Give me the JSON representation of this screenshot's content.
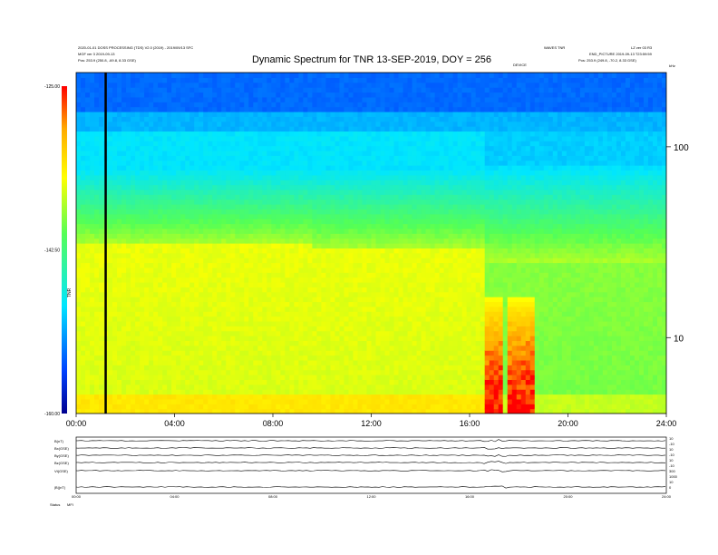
{
  "header": {
    "left_line1": "2020-01-01 DOSS PROCESSING (TDS) V2.0 (2019) - 2019/09/13 SFC",
    "left_line2": "MGF ver 3 2019-09-13",
    "left_line3": "Pos: 253.9 (250.8, -69.8, 8.33 GSE)",
    "right_line1": "WAVES TNR",
    "right_line2": "LZ ver 03 R3",
    "right_line3": "END_PICTURE 2019-09-13 T23:59:59",
    "right_line4": "Pos: 253.9 (249.8, -70.2, 8.33 GSE)",
    "mid_label": "DEVICE",
    "corner_label": "kHz"
  },
  "chart_data": {
    "type": "heatmap",
    "title": "Dynamic Spectrum for TNR 13-SEP-2019, DOY = 256",
    "x": {
      "tick_labels": [
        "00:00",
        "04:00",
        "08:00",
        "12:00",
        "16:00",
        "20:00",
        "24:00"
      ],
      "tick_hours": [
        0,
        4,
        8,
        12,
        16,
        20,
        24
      ],
      "range_hours": [
        0,
        24
      ]
    },
    "y": {
      "scale": "log",
      "unit": "kHz",
      "tick_labels": [
        "100",
        "10"
      ],
      "tick_values": [
        100,
        10
      ],
      "range": [
        4,
        245
      ]
    },
    "colorbar": {
      "tick_labels": [
        "-125.00",
        "-142.50",
        "-160.00"
      ],
      "tick_values": [
        -125,
        -142.5,
        -160
      ],
      "range": [
        -160,
        -125
      ],
      "label": "TNR",
      "colors": [
        "#00008f",
        "#0040ff",
        "#00e6ff",
        "#55ff55",
        "#ffff00",
        "#ffaa00",
        "#ff0000"
      ]
    },
    "marker_line_hour": 1.2,
    "features": [
      {
        "name": "quiet background drop",
        "start_hour": 16.6
      },
      {
        "name": "burst",
        "start_hour": 16.6,
        "end_hour": 17.3
      },
      {
        "name": "burst",
        "start_hour": 17.5,
        "end_hour": 18.6
      }
    ]
  },
  "bottom_panels": {
    "labels": [
      "B(nT)",
      "Bx(GSE)",
      "By(GSE)",
      "Bz(GSE)",
      "Vt(GSE)",
      "|B|(nT)"
    ],
    "right_labels": [
      "10",
      "-10",
      "10",
      "-10",
      "10",
      "-10",
      "300",
      "1000",
      "10",
      "0"
    ],
    "time_labels": [
      "00:00",
      "04:00",
      "08:00",
      "12:00",
      "16:00",
      "20:00",
      "24:00"
    ],
    "footer_left": "Status",
    "footer_left2": "MFI"
  }
}
